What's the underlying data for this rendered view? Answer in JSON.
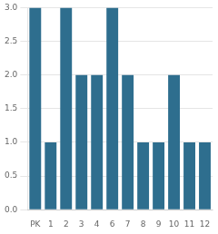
{
  "chart_data": {
    "type": "bar",
    "categories": [
      "PK",
      "1",
      "2",
      "3",
      "4",
      "6",
      "7",
      "8",
      "9",
      "10",
      "11",
      "12"
    ],
    "values": [
      3,
      1,
      3,
      2,
      2,
      3,
      2,
      1,
      1,
      2,
      1,
      1
    ],
    "color": "#2e6e8e",
    "ylim": [
      0,
      3
    ],
    "yticks": [
      {
        "value": 0,
        "label": "0.0"
      },
      {
        "value": 0.5,
        "label": "0.5"
      },
      {
        "value": 1,
        "label": "1.0"
      },
      {
        "value": 1.5,
        "label": "1.5"
      },
      {
        "value": 2,
        "label": "2.0"
      },
      {
        "value": 2.5,
        "label": "2.5"
      },
      {
        "value": 3,
        "label": "3.0"
      }
    ],
    "grid": true
  }
}
